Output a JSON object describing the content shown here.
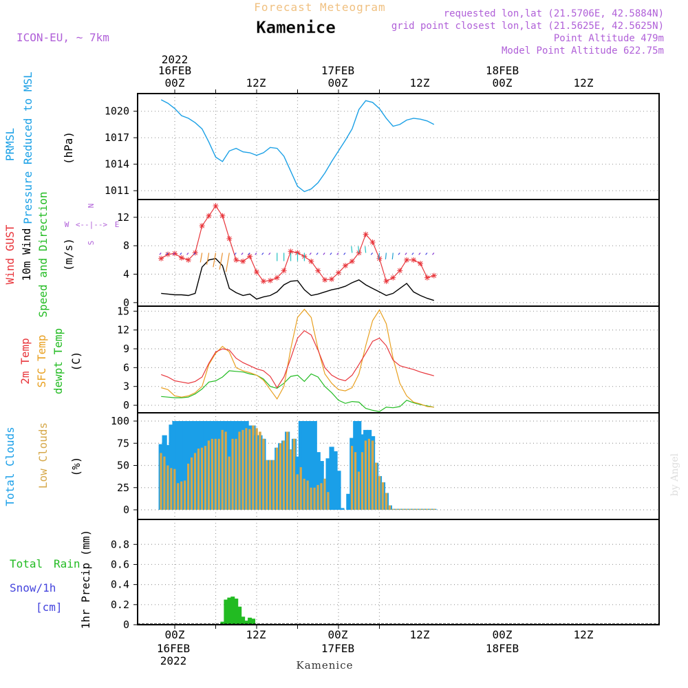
{
  "header": {
    "title": "Forecast Meteogram",
    "location": "Kamenice",
    "model": "ICON-EU, ~ 7km",
    "requested": "requested lon,lat (21.5706E, 42.5884N)",
    "gridpoint": "grid point closest lon,lat (21.5625E, 42.5625N)",
    "point_alt": "Point Altitude 479m",
    "model_alt": "Model Point Altitude 622.75m",
    "footer": "Kamenice",
    "credit": "by Angel"
  },
  "time_axis": {
    "top_ticks": [
      "00Z",
      "12Z",
      "00Z",
      "12Z",
      "00Z",
      "12Z"
    ],
    "bottom_ticks": [
      "00Z",
      "12Z",
      "00Z",
      "12Z",
      "00Z",
      "12Z"
    ],
    "top_year": "2022",
    "top_day1": "16FEB",
    "top_day2": "17FEB",
    "top_day3": "18FEB",
    "bottom_day1": "16FEB",
    "bottom_year": "2022",
    "bottom_day2": "17FEB",
    "bottom_day3": "18FEB"
  },
  "colors": {
    "pressure": "#1aa0e6",
    "gust": "#e8343a",
    "wind": "#000000",
    "green": "#22bb22",
    "sfc": "#e8a020",
    "total_clouds": "#1a9fe8",
    "low_clouds": "#d6a84a",
    "snow_text": "#4444dd",
    "purple": "#b060d8"
  },
  "chart_data": [
    {
      "type": "line",
      "panel": "pressure",
      "label": "PRMSL",
      "label2": "Pressure Reduced to MSL",
      "unit": "(hPa)",
      "x_hours": [
        -4,
        -2,
        0,
        2,
        4,
        6,
        8,
        10,
        12,
        14,
        16,
        18,
        20,
        22,
        24,
        26,
        28,
        30,
        32,
        34,
        36,
        38,
        40,
        42,
        44,
        46,
        48,
        50,
        52,
        54,
        56,
        58,
        60,
        62,
        64,
        66,
        68,
        70,
        72,
        74,
        76
      ],
      "ylim": [
        1010,
        1022
      ],
      "yticks": [
        1011,
        1014,
        1017,
        1020
      ],
      "values": [
        1021.3,
        1020.9,
        1020.3,
        1019.5,
        1019.2,
        1018.7,
        1018.0,
        1016.5,
        1014.8,
        1014.3,
        1015.5,
        1015.8,
        1015.4,
        1015.3,
        1015.0,
        1015.3,
        1015.9,
        1015.8,
        1014.9,
        1013.2,
        1011.5,
        1010.9,
        1011.2,
        1011.9,
        1013.0,
        1014.3,
        1015.5,
        1016.7,
        1018.0,
        1020.2,
        1021.2,
        1021.0,
        1020.3,
        1019.2,
        1018.3,
        1018.5,
        1019.0,
        1019.2,
        1019.1,
        1018.9,
        1018.5
      ]
    },
    {
      "type": "line",
      "panel": "wind",
      "label": "Wind GUST",
      "label2": "10m Wind",
      "label3": "Speed and Direction",
      "unit": "(m/s)",
      "compass_w": "W",
      "compass_e": "E",
      "compass_arrows": "<--|-->",
      "compass_n": "N",
      "compass_s": "S",
      "x_hours": [
        -4,
        -2,
        0,
        2,
        4,
        6,
        8,
        10,
        12,
        14,
        16,
        18,
        20,
        22,
        24,
        26,
        28,
        30,
        32,
        34,
        36,
        38,
        40,
        42,
        44,
        46,
        48,
        50,
        52,
        54,
        56,
        58,
        60,
        62,
        64,
        66,
        68,
        70,
        72,
        74,
        76
      ],
      "ylim": [
        -0.5,
        14.5
      ],
      "yticks": [
        0,
        4,
        8,
        12
      ],
      "series": [
        {
          "name": "Wind GUST",
          "values": [
            6.2,
            6.8,
            6.9,
            6.3,
            6.0,
            7.0,
            10.8,
            12.2,
            13.6,
            12.2,
            9.0,
            6.0,
            5.8,
            6.5,
            4.3,
            3.0,
            3.1,
            3.5,
            4.5,
            7.2,
            7.0,
            6.5,
            5.8,
            4.5,
            3.2,
            3.3,
            4.2,
            5.2,
            5.8,
            7.0,
            9.6,
            8.5,
            6.2,
            3.0,
            3.5,
            4.5,
            6.0,
            6.0,
            5.5,
            3.5,
            3.8
          ]
        },
        {
          "name": "10m Wind",
          "values": [
            1.3,
            1.2,
            1.1,
            1.1,
            1.0,
            1.3,
            5.0,
            6.0,
            6.2,
            5.2,
            2.0,
            1.4,
            1.0,
            1.2,
            0.5,
            0.8,
            1.0,
            1.5,
            2.5,
            3.0,
            3.1,
            1.8,
            1.0,
            1.2,
            1.5,
            1.8,
            2.0,
            2.3,
            2.8,
            3.2,
            2.5,
            2.0,
            1.5,
            1.0,
            1.3,
            2.0,
            2.7,
            1.5,
            1.0,
            0.6,
            0.3
          ]
        }
      ]
    },
    {
      "type": "line",
      "panel": "temperature",
      "label": "2m Temp",
      "label2": "SFC Temp",
      "label3": "dewpt Temp",
      "unit": "(C)",
      "x_hours": [
        -4,
        -2,
        0,
        2,
        4,
        6,
        8,
        10,
        12,
        14,
        16,
        18,
        20,
        22,
        24,
        26,
        28,
        30,
        32,
        34,
        36,
        38,
        40,
        42,
        44,
        46,
        48,
        50,
        52,
        54,
        56,
        58,
        60,
        62,
        64,
        66,
        68,
        70,
        72,
        74,
        76
      ],
      "ylim": [
        -1.2,
        15.8
      ],
      "yticks": [
        0,
        3,
        6,
        9,
        12,
        15
      ],
      "series": [
        {
          "name": "2m Temp",
          "values": [
            4.9,
            4.5,
            3.9,
            3.7,
            3.5,
            3.8,
            4.5,
            6.7,
            8.5,
            9.0,
            8.8,
            7.5,
            6.8,
            6.3,
            5.8,
            5.5,
            4.6,
            2.8,
            4.5,
            7.5,
            10.7,
            11.9,
            11.2,
            8.8,
            6.0,
            4.8,
            4.2,
            3.9,
            4.8,
            6.5,
            8.3,
            10.2,
            10.7,
            9.5,
            7.2,
            6.3,
            6.0,
            5.7,
            5.3,
            5.0,
            4.7
          ]
        },
        {
          "name": "SFC Temp",
          "values": [
            2.8,
            2.5,
            1.5,
            1.3,
            1.5,
            2.0,
            3.0,
            6.5,
            8.3,
            9.4,
            8.5,
            6.0,
            5.5,
            5.2,
            4.8,
            4.0,
            2.5,
            1.0,
            3.0,
            9.0,
            14.0,
            15.3,
            14.0,
            9.0,
            5.0,
            3.5,
            2.5,
            2.3,
            2.8,
            5.0,
            9.5,
            13.5,
            15.2,
            13.0,
            7.5,
            3.5,
            1.5,
            0.5,
            0.2,
            -0.2,
            -0.3
          ]
        },
        {
          "name": "dewpt Temp",
          "values": [
            1.4,
            1.3,
            1.2,
            1.2,
            1.3,
            1.8,
            2.6,
            3.7,
            3.9,
            4.5,
            5.5,
            5.4,
            5.3,
            5.0,
            4.8,
            4.2,
            3.0,
            2.7,
            3.5,
            4.6,
            4.8,
            3.8,
            5.0,
            4.5,
            3.0,
            2.0,
            0.8,
            0.3,
            0.6,
            0.5,
            -0.5,
            -0.8,
            -1.0,
            -0.3,
            -0.4,
            -0.2,
            0.8,
            0.4,
            0.1,
            -0.1,
            -0.3
          ]
        }
      ]
    },
    {
      "type": "bar",
      "panel": "clouds",
      "label": "Total Clouds",
      "label2": "Low Clouds",
      "unit": "(%)",
      "x_hours": [
        -4,
        -3,
        -2,
        -1,
        0,
        1,
        2,
        3,
        4,
        5,
        6,
        7,
        8,
        9,
        10,
        11,
        12,
        13,
        14,
        15,
        16,
        17,
        18,
        19,
        20,
        21,
        22,
        23,
        24,
        25,
        26,
        27,
        28,
        29,
        30,
        31,
        32,
        33,
        34,
        35,
        36,
        37,
        38,
        39,
        40,
        41,
        42,
        43,
        44,
        45,
        46,
        47,
        48,
        49,
        50,
        51,
        52,
        53,
        54,
        55,
        56,
        57,
        58,
        59,
        60,
        61,
        62,
        63,
        64,
        65,
        66,
        67,
        68,
        69,
        70,
        71,
        72,
        73,
        74,
        75,
        76
      ],
      "ylim": [
        0,
        100
      ],
      "yticks": [
        0,
        25,
        50,
        75,
        100
      ],
      "series": [
        {
          "name": "Total Clouds",
          "values": [
            74,
            84,
            73,
            96,
            100,
            100,
            100,
            100,
            100,
            100,
            100,
            100,
            100,
            100,
            100,
            100,
            100,
            100,
            100,
            100,
            100,
            100,
            100,
            100,
            100,
            100,
            95,
            95,
            84,
            84,
            80,
            56,
            56,
            56,
            70,
            75,
            78,
            88,
            68,
            80,
            60,
            100,
            100,
            100,
            100,
            100,
            65,
            55,
            35,
            58,
            71,
            66,
            44,
            2,
            0,
            18,
            81,
            100,
            100,
            85,
            90,
            90,
            83,
            53,
            38,
            31,
            19,
            5,
            1,
            1,
            1,
            1,
            1,
            1,
            1,
            1,
            1,
            1,
            1,
            1,
            1
          ]
        },
        {
          "name": "Low Clouds",
          "values": [
            64,
            60,
            50,
            47,
            46,
            30,
            32,
            33,
            52,
            59,
            64,
            69,
            70,
            72,
            78,
            80,
            80,
            80,
            90,
            88,
            60,
            80,
            80,
            88,
            90,
            92,
            91,
            95,
            92,
            88,
            80,
            56,
            56,
            56,
            70,
            75,
            78,
            88,
            68,
            80,
            40,
            48,
            35,
            33,
            25,
            25,
            28,
            30,
            35,
            20,
            0,
            0,
            0,
            0,
            0,
            0,
            72,
            65,
            43,
            65,
            78,
            80,
            78,
            53,
            38,
            31,
            19,
            5,
            1,
            1,
            1,
            1,
            1,
            1,
            1,
            1,
            1,
            1,
            1,
            1,
            1
          ]
        }
      ]
    },
    {
      "type": "bar",
      "panel": "precip",
      "label": "Total",
      "label_rain": "Rain",
      "label2": "Snow/1h",
      "label3": "[cm]",
      "unit": "1hr Precip (mm)",
      "x_hours": [
        14,
        15,
        16,
        17,
        18,
        19,
        20,
        21,
        22,
        23
      ],
      "ylim": [
        0,
        0.98
      ],
      "yticks": [
        0,
        0.2,
        0.4,
        0.6,
        0.8
      ],
      "ytick_labels": [
        "0",
        "0.2",
        "0.4",
        "0.6",
        "0.8"
      ],
      "values": [
        0.03,
        0.25,
        0.27,
        0.28,
        0.26,
        0.18,
        0.08,
        0.04,
        0.07,
        0.06
      ]
    }
  ]
}
